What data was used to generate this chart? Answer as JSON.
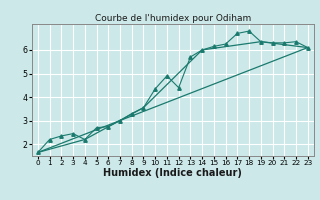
{
  "title": "Courbe de l'humidex pour Odiham",
  "xlabel": "Humidex (Indice chaleur)",
  "bg_color": "#cce8e8",
  "grid_color": "#ffffff",
  "line_color": "#1a7a6e",
  "xlim": [
    -0.5,
    23.5
  ],
  "ylim": [
    1.5,
    7.1
  ],
  "xticks": [
    0,
    1,
    2,
    3,
    4,
    5,
    6,
    7,
    8,
    9,
    10,
    11,
    12,
    13,
    14,
    15,
    16,
    17,
    18,
    19,
    20,
    21,
    22,
    23
  ],
  "yticks": [
    2,
    3,
    4,
    5,
    6
  ],
  "series1_x": [
    0,
    1,
    2,
    3,
    4,
    5,
    6,
    7,
    8,
    9,
    10,
    11,
    12,
    13,
    14,
    15,
    16,
    17,
    18,
    19,
    20,
    21,
    22,
    23
  ],
  "series1_y": [
    1.65,
    2.2,
    2.35,
    2.45,
    2.2,
    2.7,
    2.75,
    3.0,
    3.3,
    3.55,
    4.35,
    4.9,
    4.4,
    5.7,
    6.0,
    6.15,
    6.25,
    6.7,
    6.8,
    6.35,
    6.3,
    6.3,
    6.35,
    6.1
  ],
  "series2_x": [
    0,
    23
  ],
  "series2_y": [
    1.65,
    6.1
  ],
  "series3_x": [
    0,
    4,
    9,
    14,
    19,
    23
  ],
  "series3_y": [
    1.65,
    2.2,
    3.55,
    6.0,
    6.35,
    6.1
  ],
  "title_fontsize": 6.5,
  "xlabel_fontsize": 7,
  "tick_fontsize": 5.2
}
